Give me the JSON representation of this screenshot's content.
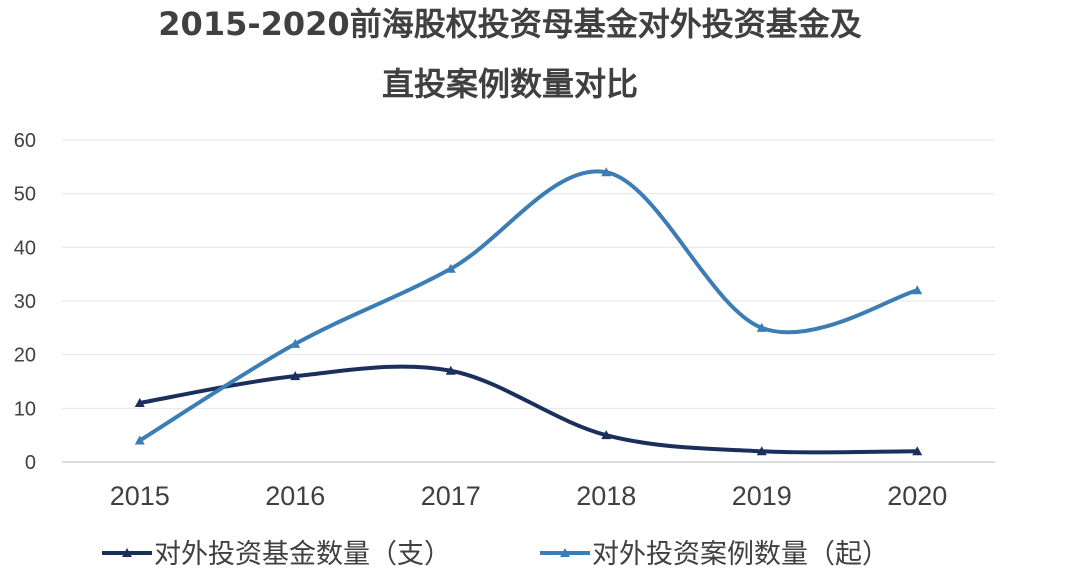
{
  "chart_data": {
    "type": "line",
    "title_lines": [
      "2015-2020前海股权投资母基金对外投资基金及",
      "直投案例数量对比"
    ],
    "categories": [
      "2015",
      "2016",
      "2017",
      "2018",
      "2019",
      "2020"
    ],
    "ylim": [
      0,
      60
    ],
    "y_ticks": [
      "0",
      "10",
      "20",
      "30",
      "40",
      "50",
      "60"
    ],
    "grid": true,
    "smooth": true,
    "legend_position": "bottom",
    "series": [
      {
        "name": "对外投资基金数量（支）",
        "values": [
          11,
          16,
          17,
          5,
          2,
          2
        ],
        "color": "#1a2f5c",
        "marker": "triangle"
      },
      {
        "name": "对外投资案例数量（起）",
        "values": [
          4,
          22,
          36,
          54,
          25,
          32
        ],
        "color": "#3b7db4",
        "marker": "triangle"
      }
    ]
  }
}
